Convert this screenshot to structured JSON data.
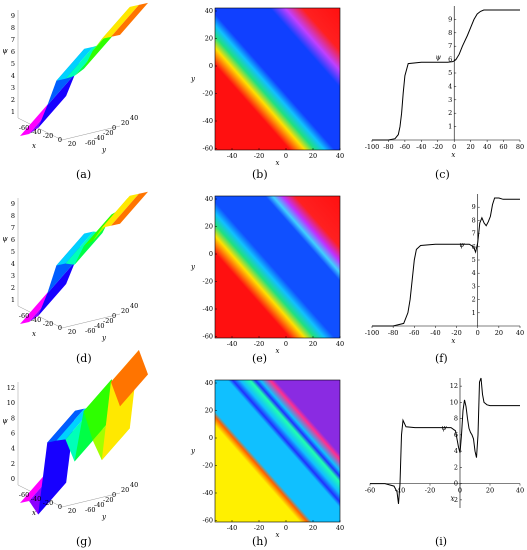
{
  "figure": {
    "captions": [
      "(a)",
      "(b)",
      "(c)",
      "(d)",
      "(e)",
      "(f)",
      "(g)",
      "(h)",
      "(i)"
    ]
  },
  "axes": {
    "psi": "ψ",
    "x": "x",
    "y": "y"
  },
  "panels_3d": [
    {
      "id": "a",
      "zticks": [
        "1",
        "2",
        "3",
        "4",
        "5",
        "6",
        "7",
        "8",
        "9"
      ],
      "xticks": [
        "-60",
        "-40",
        "-20",
        "0",
        "20"
      ],
      "yticks": [
        "40",
        "20",
        "0",
        "-20",
        "-40",
        "-60"
      ]
    },
    {
      "id": "d",
      "zticks": [
        "1",
        "2",
        "3",
        "4",
        "5",
        "6",
        "7",
        "8",
        "9"
      ],
      "xticks": [
        "-60",
        "-40",
        "-20",
        "0",
        "20"
      ],
      "yticks": [
        "40",
        "20",
        "0",
        "-20",
        "-40",
        "-60"
      ]
    },
    {
      "id": "g",
      "zticks": [
        "0",
        "2",
        "4",
        "6",
        "8",
        "10",
        "12"
      ],
      "xticks": [
        "-60",
        "-40",
        "-20",
        "0",
        "20"
      ],
      "yticks": [
        "40",
        "20",
        "0",
        "-20",
        "-40",
        "-60"
      ]
    }
  ],
  "panels_density": [
    {
      "id": "b",
      "xticks": [
        "-40",
        "-20",
        "0",
        "20",
        "40"
      ],
      "yticks": [
        "40",
        "20",
        "0",
        "-20",
        "-40",
        "-60"
      ]
    },
    {
      "id": "e",
      "xticks": [
        "-40",
        "-20",
        "0",
        "20",
        "40"
      ],
      "yticks": [
        "40",
        "20",
        "0",
        "-20",
        "-40",
        "-60"
      ]
    },
    {
      "id": "h",
      "xticks": [
        "-40",
        "-20",
        "0",
        "20",
        "40"
      ],
      "yticks": [
        "40",
        "20",
        "0",
        "-20",
        "-40",
        "-60"
      ]
    }
  ],
  "chart_data": [
    {
      "type": "line",
      "panel": "c",
      "xlim": [
        -100,
        80
      ],
      "ylim": [
        0,
        10
      ],
      "xticks": [
        "-100",
        "-80",
        "-60",
        "-40",
        "-20",
        "0",
        "20",
        "40",
        "60",
        "80"
      ],
      "yticks": [
        "1",
        "2",
        "3",
        "4",
        "5",
        "6",
        "7",
        "8",
        "9"
      ],
      "series": [
        {
          "x": [
            -100,
            -80,
            -72,
            -68,
            -66,
            -64,
            -62,
            -60,
            -56,
            -40,
            -20,
            -8,
            -2,
            0,
            2,
            6,
            10,
            16,
            20,
            24,
            28,
            32,
            36,
            40,
            50,
            60,
            80
          ],
          "y": [
            0,
            0,
            0.1,
            0.4,
            1,
            2,
            3.5,
            4.8,
            5.7,
            5.8,
            5.8,
            5.8,
            5.85,
            5.9,
            6,
            6.4,
            7,
            7.8,
            8.4,
            9,
            9.4,
            9.6,
            9.7,
            9.7,
            9.7,
            9.7,
            9.7
          ]
        }
      ]
    },
    {
      "type": "line",
      "panel": "f",
      "xlim": [
        -100,
        40
      ],
      "ylim": [
        0,
        10
      ],
      "xticks": [
        "-100",
        "-80",
        "-60",
        "-40",
        "-20",
        "0",
        "20",
        "40"
      ],
      "yticks": [
        "1",
        "2",
        "3",
        "4",
        "5",
        "6",
        "7",
        "8",
        "9"
      ],
      "series": [
        {
          "x": [
            -100,
            -80,
            -70,
            -66,
            -64,
            -62,
            -60,
            -58,
            -54,
            -40,
            -20,
            -8,
            -4,
            -2,
            0,
            2,
            4,
            6,
            8,
            10,
            12,
            14,
            16,
            20,
            24,
            30,
            40
          ],
          "y": [
            0,
            0,
            0.2,
            1,
            2,
            3.5,
            5,
            5.8,
            6.1,
            6.2,
            6.2,
            6.2,
            6,
            5.6,
            6.3,
            7.8,
            8.2,
            7.8,
            7.6,
            7.9,
            8.3,
            9.2,
            9.7,
            9.7,
            9.6,
            9.6,
            9.6
          ]
        }
      ]
    },
    {
      "type": "line",
      "panel": "i",
      "xlim": [
        -60,
        40
      ],
      "ylim": [
        -3,
        13
      ],
      "xticks": [
        "-60",
        "-40",
        "-20",
        "0",
        "20",
        "40"
      ],
      "yticks": [
        "-2",
        "0",
        "2",
        "4",
        "6",
        "8",
        "10",
        "12"
      ],
      "series": [
        {
          "x": [
            -60,
            -50,
            -44,
            -42,
            -41,
            -40,
            -39,
            -38,
            -36,
            -30,
            -20,
            -10,
            -6,
            -3,
            -1,
            0,
            1,
            2,
            3,
            4,
            5,
            6,
            7,
            8,
            9,
            10,
            11,
            12,
            13,
            14,
            15,
            16,
            18,
            20,
            25,
            30,
            40
          ],
          "y": [
            0,
            0,
            -0.3,
            -1,
            -2.5,
            0,
            6,
            7.8,
            7,
            6.9,
            6.9,
            6.9,
            6.9,
            6.5,
            4.5,
            3.8,
            6,
            9,
            10.3,
            9.5,
            8,
            6.8,
            6.3,
            6,
            5.5,
            4,
            3.2,
            6,
            12.5,
            13,
            11,
            10,
            9.7,
            9.6,
            9.6,
            9.6,
            9.6
          ]
        }
      ]
    }
  ]
}
